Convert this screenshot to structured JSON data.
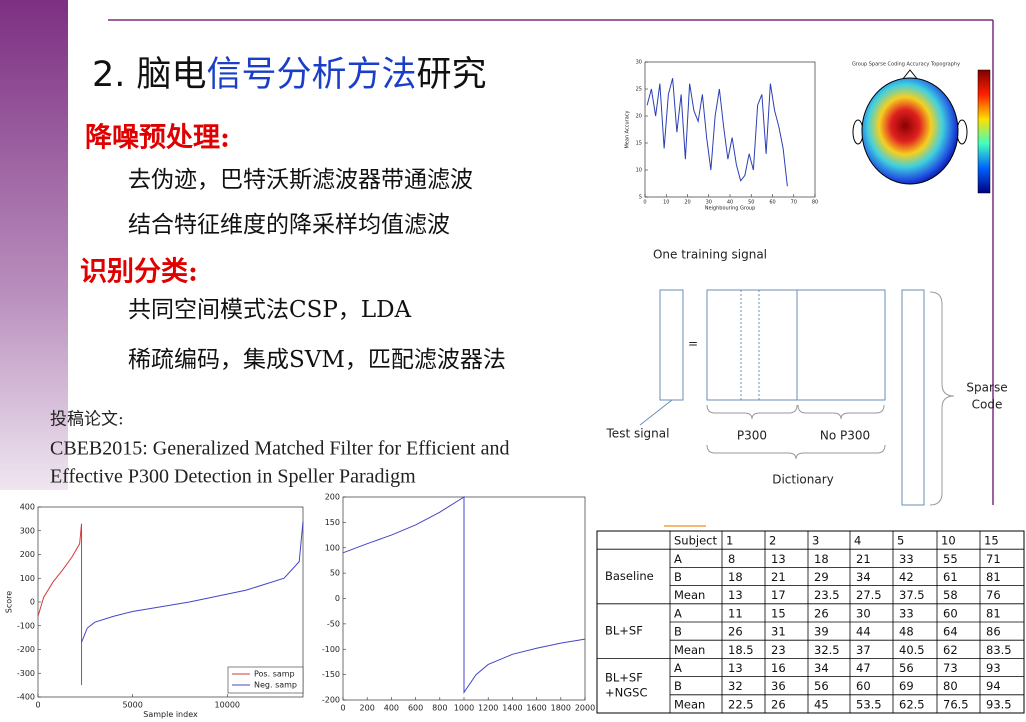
{
  "slide": {
    "title": {
      "prefix": "2. 脑电",
      "highlight": "信号分析方法",
      "suffix": "研究"
    },
    "sections": [
      {
        "heading": "降噪预处理:",
        "items": [
          "去伪迹，巴特沃斯滤波器带通滤波",
          "结合特征维度的降采样均值滤波"
        ]
      },
      {
        "heading": "识别分类:",
        "items": [
          "共同空间模式法CSP，LDA",
          "稀疏编码，集成SVM，匹配滤波器法"
        ]
      }
    ],
    "paper": {
      "label": "投稿论文:",
      "lines": [
        "CBEB2015: Generalized Matched Filter for Efficient and",
        "Effective P300 Detection in Speller Paradigm"
      ]
    }
  },
  "plots": [
    {
      "type": "line",
      "xlabel": "Neighbouring Group",
      "ylabel": "Mean Accuracy",
      "xlim": [
        0,
        80
      ],
      "ylim": [
        5,
        30
      ],
      "xticks": [
        0,
        10,
        20,
        30,
        40,
        50,
        60,
        70,
        80
      ],
      "yticks": [
        5,
        10,
        15,
        20,
        25,
        30
      ],
      "series": [
        {
          "color": "#2b3fb5",
          "x": [
            1,
            3,
            5,
            7,
            9,
            11,
            13,
            15,
            17,
            19,
            21,
            23,
            25,
            27,
            29,
            31,
            33,
            35,
            37,
            39,
            41,
            43,
            45,
            47,
            49,
            51,
            53,
            55,
            57,
            59,
            61,
            63,
            65,
            67
          ],
          "values": [
            22,
            25,
            20,
            26,
            14,
            24,
            27,
            17,
            24,
            12,
            26,
            21,
            19,
            24,
            16,
            10,
            20,
            25,
            18,
            12,
            16,
            11,
            8,
            9,
            13,
            10,
            22,
            24,
            13,
            26,
            21,
            18,
            14,
            7
          ]
        }
      ]
    },
    {
      "type": "topography",
      "title": "Group Sparse Coding Accuracy Topography"
    },
    {
      "type": "line",
      "xlabel": "Sample index",
      "ylabel": "Score",
      "xlim": [
        0,
        14000
      ],
      "ylim": [
        -400,
        400
      ],
      "xticks": [
        0,
        5000,
        10000
      ],
      "yticks": [
        -400,
        -300,
        -200,
        -100,
        0,
        100,
        200,
        300,
        400
      ],
      "series": [
        {
          "name": "Pos. samp",
          "color": "#d83a3a",
          "x": [
            0,
            300,
            800,
            1300,
            1800,
            2200,
            2300,
            2300
          ],
          "values": [
            -60,
            20,
            85,
            135,
            190,
            245,
            330,
            -350
          ]
        },
        {
          "name": "Neg. samp",
          "color": "#4545c8",
          "x": [
            2300,
            2600,
            3000,
            4000,
            5000,
            8000,
            11000,
            13000,
            13800,
            14000
          ],
          "values": [
            -170,
            -110,
            -85,
            -60,
            -40,
            0,
            50,
            100,
            170,
            340
          ]
        }
      ]
    },
    {
      "type": "line",
      "xlim": [
        0,
        2000
      ],
      "ylim": [
        -200,
        200
      ],
      "xticks": [
        0,
        200,
        400,
        600,
        800,
        1000,
        1200,
        1400,
        1600,
        1800,
        2000
      ],
      "yticks": [
        -200,
        -150,
        -100,
        -50,
        0,
        50,
        100,
        150,
        200
      ],
      "series": [
        {
          "color": "#4545c8",
          "x": [
            0,
            200,
            400,
            600,
            800,
            1000,
            1000,
            1100,
            1200,
            1400,
            1600,
            1800,
            2000
          ],
          "values": [
            90,
            108,
            125,
            145,
            170,
            200,
            -185,
            -150,
            -130,
            -110,
            -98,
            -88,
            -80
          ]
        }
      ]
    }
  ],
  "diagram": {
    "training": "One training signal",
    "equals": "=",
    "test": "Test signal",
    "p300": "P300",
    "nop300": "No P300",
    "dictionary": "Dictionary",
    "sparse": [
      "Sparse",
      "Code"
    ]
  },
  "table": {
    "header": [
      "Subject",
      "1",
      "2",
      "3",
      "4",
      "5",
      "10",
      "15"
    ],
    "groups": [
      {
        "name": [
          "Baseline"
        ],
        "rows": [
          {
            "label": "A",
            "values": [
              "8",
              "13",
              "18",
              "21",
              "33",
              "55",
              "71"
            ]
          },
          {
            "label": "B",
            "values": [
              "18",
              "21",
              "29",
              "34",
              "42",
              "61",
              "81"
            ]
          },
          {
            "label": "Mean",
            "values": [
              "13",
              "17",
              "23.5",
              "27.5",
              "37.5",
              "58",
              "76"
            ]
          }
        ]
      },
      {
        "name": [
          "BL+SF"
        ],
        "rows": [
          {
            "label": "A",
            "values": [
              "11",
              "15",
              "26",
              "30",
              "33",
              "60",
              "81"
            ]
          },
          {
            "label": "B",
            "values": [
              "26",
              "31",
              "39",
              "44",
              "48",
              "64",
              "86"
            ]
          },
          {
            "label": "Mean",
            "values": [
              "18.5",
              "23",
              "32.5",
              "37",
              "40.5",
              "62",
              "83.5"
            ]
          }
        ]
      },
      {
        "name": [
          "BL+SF",
          "+NGSC"
        ],
        "rows": [
          {
            "label": "A",
            "values": [
              "13",
              "16",
              "34",
              "47",
              "56",
              "73",
              "93"
            ]
          },
          {
            "label": "B",
            "values": [
              "32",
              "36",
              "56",
              "60",
              "69",
              "80",
              "94"
            ]
          },
          {
            "label": "Mean",
            "values": [
              "22.5",
              "26",
              "45",
              "53.5",
              "62.5",
              "76.5",
              "93.5"
            ]
          }
        ]
      }
    ]
  }
}
